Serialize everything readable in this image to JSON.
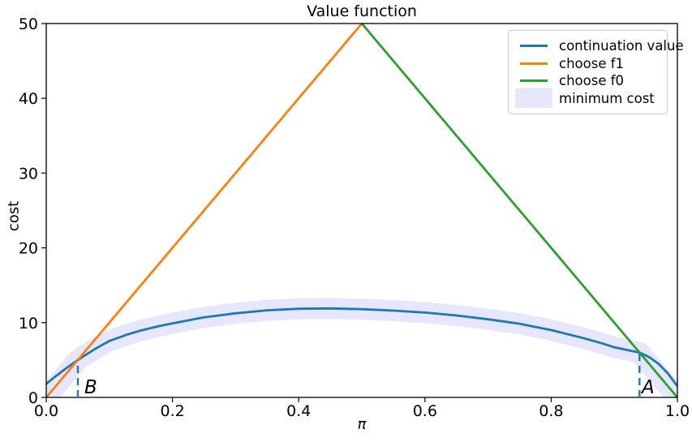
{
  "chart_data": {
    "type": "line",
    "title": "Value function",
    "xlabel": "π",
    "ylabel": "cost",
    "xlim": [
      0,
      1
    ],
    "ylim": [
      0,
      50
    ],
    "grid": false,
    "xtick_values": [
      0,
      0.2,
      0.4,
      0.6,
      0.8,
      1.0
    ],
    "xtick_labels": [
      "0.0",
      "0.2",
      "0.4",
      "0.6",
      "0.8",
      "1.0"
    ],
    "ytick_values": [
      0,
      10,
      20,
      30,
      40,
      50
    ],
    "ytick_labels": [
      "0",
      "10",
      "20",
      "30",
      "40",
      "50"
    ],
    "legend": {
      "position": "upper right",
      "entries": [
        {
          "label": "continuation value",
          "color": "#1f77b4",
          "handle": "line"
        },
        {
          "label": "choose f1",
          "color": "#ff7f0e",
          "handle": "line"
        },
        {
          "label": "choose f0",
          "color": "#2ca02c",
          "handle": "line"
        },
        {
          "label": "minimum cost",
          "color": "rgba(25,25,235,0.11)",
          "handle": "patch"
        }
      ]
    },
    "series": [
      {
        "name": "continuation value",
        "color": "#1f77b4",
        "style": "solid",
        "points": [
          [
            0,
            1.8
          ],
          [
            0.01,
            2.5
          ],
          [
            0.02,
            3.15
          ],
          [
            0.03,
            3.8
          ],
          [
            0.04,
            4.4
          ],
          [
            0.05,
            5.0
          ],
          [
            0.06,
            5.55
          ],
          [
            0.08,
            6.6
          ],
          [
            0.1,
            7.55
          ],
          [
            0.13,
            8.45
          ],
          [
            0.15,
            8.95
          ],
          [
            0.18,
            9.55
          ],
          [
            0.2,
            9.9
          ],
          [
            0.25,
            10.7
          ],
          [
            0.3,
            11.25
          ],
          [
            0.35,
            11.65
          ],
          [
            0.4,
            11.85
          ],
          [
            0.45,
            11.9
          ],
          [
            0.5,
            11.8
          ],
          [
            0.55,
            11.6
          ],
          [
            0.6,
            11.35
          ],
          [
            0.65,
            10.95
          ],
          [
            0.7,
            10.45
          ],
          [
            0.75,
            9.85
          ],
          [
            0.8,
            9.0
          ],
          [
            0.85,
            7.95
          ],
          [
            0.88,
            7.25
          ],
          [
            0.9,
            6.7
          ],
          [
            0.92,
            6.35
          ],
          [
            0.94,
            6.0
          ],
          [
            0.955,
            5.4
          ],
          [
            0.97,
            4.5
          ],
          [
            0.985,
            3.2
          ],
          [
            1,
            1.5
          ]
        ]
      },
      {
        "name": "choose f1",
        "color": "#ff7f0e",
        "style": "solid",
        "points": [
          [
            0,
            0
          ],
          [
            0.5,
            50
          ]
        ]
      },
      {
        "name": "choose f0",
        "color": "#2ca02c",
        "style": "solid",
        "points": [
          [
            0.5,
            50
          ],
          [
            1,
            0
          ]
        ]
      },
      {
        "name": "minimum cost",
        "color": "rgba(25,25,235,0.11)",
        "style": "band",
        "band_width": 26,
        "points": [
          [
            0,
            0
          ],
          [
            0.05,
            5.0
          ],
          [
            0.06,
            5.55
          ],
          [
            0.08,
            6.6
          ],
          [
            0.1,
            7.55
          ],
          [
            0.13,
            8.45
          ],
          [
            0.15,
            8.95
          ],
          [
            0.18,
            9.55
          ],
          [
            0.2,
            9.9
          ],
          [
            0.25,
            10.7
          ],
          [
            0.3,
            11.25
          ],
          [
            0.35,
            11.65
          ],
          [
            0.4,
            11.85
          ],
          [
            0.45,
            11.9
          ],
          [
            0.5,
            11.8
          ],
          [
            0.55,
            11.6
          ],
          [
            0.6,
            11.35
          ],
          [
            0.65,
            10.95
          ],
          [
            0.7,
            10.45
          ],
          [
            0.75,
            9.85
          ],
          [
            0.8,
            9.0
          ],
          [
            0.85,
            7.95
          ],
          [
            0.88,
            7.25
          ],
          [
            0.9,
            6.7
          ],
          [
            0.92,
            6.35
          ],
          [
            0.94,
            6.0
          ],
          [
            0.96,
            4.0
          ],
          [
            0.98,
            2.0
          ],
          [
            1,
            0
          ]
        ]
      }
    ],
    "annotations": [
      {
        "label": "B",
        "x": 0.0501,
        "y_top": 5.0,
        "text_x": 0.0604,
        "text_y": 0.55
      },
      {
        "label": "A",
        "x": 0.94,
        "y_top": 6.0,
        "text_x": 0.9435,
        "text_y": 0.55
      }
    ],
    "threshold_line_color": "#1f77b4"
  }
}
